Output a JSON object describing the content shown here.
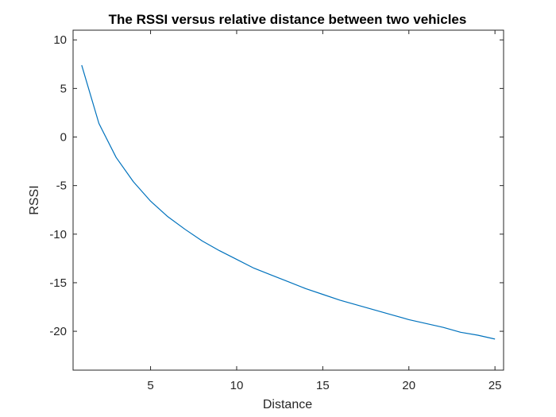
{
  "chart_data": {
    "type": "line",
    "title": "The RSSI versus relative distance between two vehicles",
    "xlabel": "Distance",
    "ylabel": "RSSI",
    "xlim": [
      0.5,
      25.5
    ],
    "ylim": [
      -24,
      11
    ],
    "xticks": [
      5,
      10,
      15,
      20,
      25
    ],
    "yticks": [
      10,
      5,
      0,
      -5,
      -10,
      -15,
      -20
    ],
    "grid": false,
    "legend": "none",
    "series": [
      {
        "color": "#0072bd",
        "x": [
          1,
          2,
          3,
          4,
          5,
          6,
          7,
          8,
          9,
          10,
          11,
          12,
          13,
          14,
          15,
          16,
          17,
          18,
          19,
          20,
          21,
          22,
          23,
          24,
          25
        ],
        "y": [
          7.4,
          1.4,
          -2.1,
          -4.6,
          -6.6,
          -8.2,
          -9.5,
          -10.7,
          -11.7,
          -12.6,
          -13.5,
          -14.2,
          -14.9,
          -15.6,
          -16.2,
          -16.8,
          -17.3,
          -17.8,
          -18.3,
          -18.8,
          -19.2,
          -19.6,
          -20.1,
          -20.4,
          -20.8
        ]
      }
    ]
  }
}
